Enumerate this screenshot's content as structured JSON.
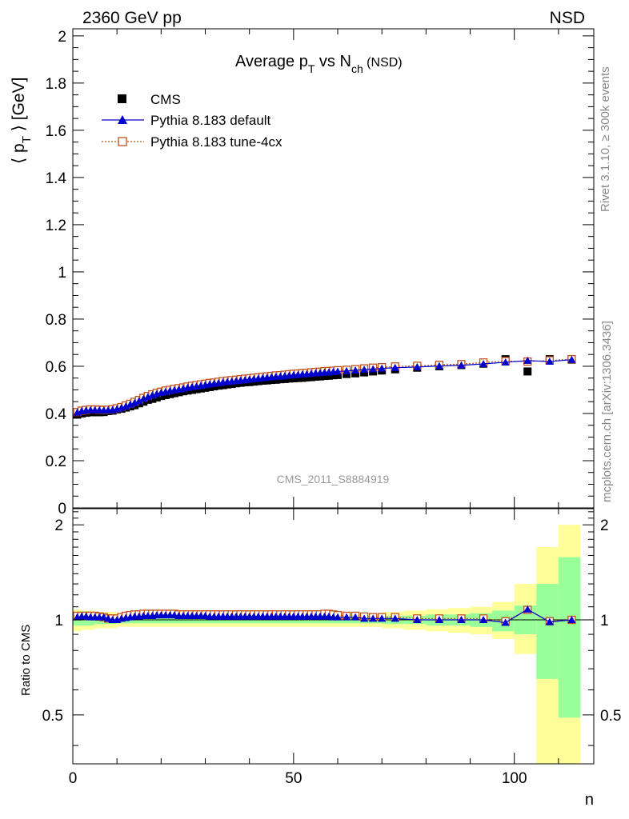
{
  "header": {
    "left": "2360 GeV pp",
    "right": "NSD"
  },
  "side_labels": {
    "rivet": "Rivet 3.1.10, ≥ 300k events",
    "mcplots": "mcplots.cern.ch [arXiv:1306.3436]"
  },
  "watermark": "CMS_2011_S8884919",
  "colors": {
    "cms": "#000000",
    "pythia_default": "#0000cc",
    "pythia_tune": "#c0501e",
    "band_inner": "#99ff99",
    "band_outer": "#ffff99"
  },
  "chart_data": [
    {
      "type": "scatter",
      "panel": "main",
      "title": {
        "base": "Average p",
        "sub1": "T",
        "mid": " vs N",
        "sub2": "ch",
        "tail": " (NSD)"
      },
      "ylabel": {
        "pre": "⟨ p",
        "sub": "T",
        "post": " ⟩ [GeV]"
      },
      "xlim": [
        0,
        118
      ],
      "ylim": [
        0,
        2.03
      ],
      "yticks": [
        "0",
        "0.2",
        "0.4",
        "0.6",
        "0.8",
        "1",
        "1.2",
        "1.4",
        "1.6",
        "1.8",
        "2"
      ],
      "legend_position": "top-left",
      "series": [
        {
          "name": "CMS",
          "marker": "filled-square",
          "x": [
            1,
            2,
            3,
            4,
            5,
            6,
            7,
            8,
            9,
            10,
            11,
            12,
            13,
            14,
            15,
            16,
            17,
            18,
            19,
            20,
            21,
            22,
            23,
            24,
            25,
            26,
            27,
            28,
            29,
            30,
            31,
            32,
            33,
            34,
            35,
            36,
            37,
            38,
            39,
            40,
            41,
            42,
            43,
            44,
            45,
            46,
            47,
            48,
            49,
            50,
            51,
            52,
            53,
            54,
            55,
            56,
            57,
            58,
            59,
            60,
            62,
            64,
            66,
            68,
            70,
            73,
            78,
            83,
            88,
            93,
            98,
            103,
            108,
            113
          ],
          "y": [
            0.395,
            0.4,
            0.403,
            0.405,
            0.405,
            0.405,
            0.406,
            0.41,
            0.412,
            0.417,
            0.42,
            0.425,
            0.43,
            0.435,
            0.443,
            0.45,
            0.458,
            0.462,
            0.468,
            0.474,
            0.478,
            0.482,
            0.486,
            0.49,
            0.494,
            0.497,
            0.5,
            0.503,
            0.506,
            0.509,
            0.512,
            0.515,
            0.518,
            0.52,
            0.523,
            0.525,
            0.528,
            0.53,
            0.532,
            0.533,
            0.535,
            0.537,
            0.539,
            0.54,
            0.542,
            0.543,
            0.545,
            0.546,
            0.548,
            0.549,
            0.55,
            0.551,
            0.553,
            0.554,
            0.556,
            0.557,
            0.559,
            0.56,
            0.562,
            0.563,
            0.567,
            0.57,
            0.574,
            0.578,
            0.582,
            0.587,
            0.594,
            0.6,
            0.605,
            0.611,
            0.63,
            0.578,
            0.63,
            0.628
          ]
        },
        {
          "name": "Pythia 8.183 default",
          "marker": "filled-triangle",
          "x": [
            1,
            2,
            3,
            4,
            5,
            6,
            7,
            8,
            9,
            10,
            11,
            12,
            13,
            14,
            15,
            16,
            17,
            18,
            19,
            20,
            21,
            22,
            23,
            24,
            25,
            26,
            27,
            28,
            29,
            30,
            31,
            32,
            33,
            34,
            35,
            36,
            37,
            38,
            39,
            40,
            41,
            42,
            43,
            44,
            45,
            46,
            47,
            48,
            49,
            50,
            51,
            52,
            53,
            54,
            55,
            56,
            57,
            58,
            59,
            60,
            62,
            64,
            66,
            68,
            70,
            73,
            78,
            83,
            88,
            93,
            98,
            103,
            108,
            113
          ],
          "y": [
            0.404,
            0.41,
            0.413,
            0.414,
            0.414,
            0.414,
            0.413,
            0.414,
            0.415,
            0.419,
            0.424,
            0.43,
            0.438,
            0.445,
            0.453,
            0.462,
            0.47,
            0.477,
            0.483,
            0.488,
            0.492,
            0.496,
            0.499,
            0.502,
            0.506,
            0.509,
            0.512,
            0.515,
            0.518,
            0.521,
            0.524,
            0.527,
            0.529,
            0.532,
            0.534,
            0.536,
            0.538,
            0.54,
            0.542,
            0.544,
            0.546,
            0.548,
            0.55,
            0.552,
            0.554,
            0.556,
            0.557,
            0.559,
            0.561,
            0.563,
            0.564,
            0.566,
            0.567,
            0.569,
            0.571,
            0.572,
            0.574,
            0.575,
            0.576,
            0.578,
            0.58,
            0.583,
            0.586,
            0.588,
            0.591,
            0.594,
            0.597,
            0.601,
            0.604,
            0.61,
            0.617,
            0.624,
            0.62,
            0.628
          ]
        },
        {
          "name": "Pythia 8.183 tune-4cx",
          "marker": "open-square",
          "x": [
            1,
            2,
            3,
            4,
            5,
            6,
            7,
            8,
            9,
            10,
            11,
            12,
            13,
            14,
            15,
            16,
            17,
            18,
            19,
            20,
            21,
            22,
            23,
            24,
            25,
            26,
            27,
            28,
            29,
            30,
            31,
            32,
            33,
            34,
            35,
            36,
            37,
            38,
            39,
            40,
            41,
            42,
            43,
            44,
            45,
            46,
            47,
            48,
            49,
            50,
            51,
            52,
            53,
            54,
            55,
            56,
            57,
            58,
            59,
            60,
            62,
            64,
            66,
            68,
            70,
            73,
            78,
            83,
            88,
            93,
            98,
            103,
            108,
            113
          ],
          "y": [
            0.406,
            0.412,
            0.415,
            0.417,
            0.417,
            0.416,
            0.415,
            0.416,
            0.418,
            0.422,
            0.427,
            0.434,
            0.441,
            0.449,
            0.457,
            0.466,
            0.474,
            0.481,
            0.487,
            0.492,
            0.497,
            0.5,
            0.504,
            0.507,
            0.51,
            0.514,
            0.517,
            0.52,
            0.523,
            0.526,
            0.529,
            0.531,
            0.534,
            0.537,
            0.539,
            0.541,
            0.543,
            0.545,
            0.547,
            0.549,
            0.551,
            0.553,
            0.555,
            0.557,
            0.559,
            0.561,
            0.562,
            0.564,
            0.566,
            0.568,
            0.569,
            0.571,
            0.572,
            0.574,
            0.576,
            0.577,
            0.579,
            0.58,
            0.581,
            0.583,
            0.585,
            0.588,
            0.591,
            0.594,
            0.596,
            0.599,
            0.602,
            0.606,
            0.609,
            0.616,
            0.622,
            0.62,
            0.625,
            0.63
          ]
        }
      ]
    },
    {
      "type": "scatter",
      "panel": "ratio",
      "xlabel": "n",
      "ylabel": "Ratio to CMS",
      "xlim": [
        0,
        118
      ],
      "ylim": [
        0.35,
        2.25
      ],
      "xticks": [
        "0",
        "50",
        "100"
      ],
      "yticks": [
        "0.5",
        "1",
        "2"
      ],
      "scale": "log",
      "band_edges": [
        0,
        2,
        5,
        10,
        20,
        30,
        40,
        50,
        60,
        65,
        70,
        75,
        80,
        85,
        90,
        95,
        100,
        105,
        110,
        115
      ],
      "band_inner": [
        [
          0.96,
          1.04
        ],
        [
          0.96,
          1.04
        ],
        [
          0.97,
          1.03
        ],
        [
          0.975,
          1.025
        ],
        [
          0.975,
          1.025
        ],
        [
          0.975,
          1.025
        ],
        [
          0.975,
          1.025
        ],
        [
          0.975,
          1.025
        ],
        [
          0.975,
          1.025
        ],
        [
          0.975,
          1.025
        ],
        [
          0.97,
          1.03
        ],
        [
          0.97,
          1.03
        ],
        [
          0.96,
          1.04
        ],
        [
          0.96,
          1.04
        ],
        [
          0.95,
          1.05
        ],
        [
          0.92,
          1.07
        ],
        [
          0.9,
          1.11
        ],
        [
          0.65,
          1.3
        ],
        [
          0.49,
          1.58
        ]
      ],
      "band_outer": [
        [
          0.92,
          1.08
        ],
        [
          0.93,
          1.07
        ],
        [
          0.94,
          1.06
        ],
        [
          0.95,
          1.05
        ],
        [
          0.95,
          1.05
        ],
        [
          0.95,
          1.05
        ],
        [
          0.95,
          1.05
        ],
        [
          0.95,
          1.05
        ],
        [
          0.95,
          1.05
        ],
        [
          0.95,
          1.05
        ],
        [
          0.94,
          1.06
        ],
        [
          0.93,
          1.07
        ],
        [
          0.92,
          1.08
        ],
        [
          0.91,
          1.09
        ],
        [
          0.9,
          1.1
        ],
        [
          0.87,
          1.14
        ],
        [
          0.78,
          1.3
        ],
        [
          0.3,
          1.7
        ],
        [
          0.3,
          2.0
        ]
      ],
      "series": [
        {
          "name": "Pythia 8.183 default",
          "x": [
            1,
            2,
            3,
            4,
            5,
            6,
            7,
            8,
            9,
            10,
            11,
            12,
            13,
            14,
            15,
            16,
            17,
            18,
            19,
            20,
            21,
            22,
            23,
            24,
            25,
            26,
            27,
            28,
            29,
            30,
            31,
            32,
            33,
            34,
            35,
            36,
            37,
            38,
            39,
            40,
            41,
            42,
            43,
            44,
            45,
            46,
            47,
            48,
            49,
            50,
            51,
            52,
            53,
            54,
            55,
            56,
            57,
            58,
            59,
            60,
            62,
            64,
            66,
            68,
            70,
            73,
            78,
            83,
            88,
            93,
            98,
            103,
            108,
            113
          ],
          "y": [
            1.02,
            1.025,
            1.025,
            1.02,
            1.02,
            1.02,
            1.02,
            1.01,
            1.0,
            1.0,
            1.01,
            1.015,
            1.02,
            1.025,
            1.025,
            1.03,
            1.03,
            1.03,
            1.035,
            1.035,
            1.035,
            1.035,
            1.035,
            1.03,
            1.03,
            1.03,
            1.03,
            1.03,
            1.03,
            1.03,
            1.025,
            1.025,
            1.025,
            1.025,
            1.025,
            1.025,
            1.025,
            1.025,
            1.025,
            1.025,
            1.025,
            1.025,
            1.025,
            1.025,
            1.025,
            1.025,
            1.025,
            1.025,
            1.025,
            1.025,
            1.025,
            1.025,
            1.025,
            1.025,
            1.025,
            1.025,
            1.025,
            1.025,
            1.02,
            1.02,
            1.02,
            1.02,
            1.01,
            1.01,
            1.01,
            1.01,
            1.0,
            1.0,
            1.0,
            1.0,
            0.98,
            1.08,
            0.985,
            1.0
          ]
        },
        {
          "name": "Pythia 8.183 tune-4cx",
          "x": [
            1,
            2,
            3,
            4,
            5,
            6,
            7,
            8,
            9,
            10,
            11,
            12,
            13,
            14,
            15,
            16,
            17,
            18,
            19,
            20,
            21,
            22,
            23,
            24,
            25,
            26,
            27,
            28,
            29,
            30,
            31,
            32,
            33,
            34,
            35,
            36,
            37,
            38,
            39,
            40,
            41,
            42,
            43,
            44,
            45,
            46,
            47,
            48,
            49,
            50,
            51,
            52,
            53,
            54,
            55,
            56,
            57,
            58,
            59,
            60,
            62,
            64,
            66,
            68,
            70,
            73,
            78,
            83,
            88,
            93,
            98,
            103,
            108,
            113
          ],
          "y": [
            1.03,
            1.03,
            1.03,
            1.03,
            1.03,
            1.025,
            1.02,
            1.01,
            1.01,
            1.01,
            1.02,
            1.03,
            1.035,
            1.04,
            1.04,
            1.045,
            1.045,
            1.045,
            1.045,
            1.045,
            1.045,
            1.045,
            1.045,
            1.04,
            1.04,
            1.04,
            1.04,
            1.04,
            1.04,
            1.04,
            1.04,
            1.04,
            1.04,
            1.04,
            1.04,
            1.04,
            1.04,
            1.04,
            1.04,
            1.04,
            1.04,
            1.04,
            1.04,
            1.04,
            1.04,
            1.04,
            1.04,
            1.04,
            1.04,
            1.04,
            1.04,
            1.04,
            1.04,
            1.04,
            1.04,
            1.04,
            1.045,
            1.045,
            1.04,
            1.035,
            1.03,
            1.03,
            1.025,
            1.02,
            1.02,
            1.02,
            1.01,
            1.01,
            1.01,
            1.01,
            0.99,
            1.075,
            0.99,
            1.0
          ]
        }
      ]
    }
  ]
}
